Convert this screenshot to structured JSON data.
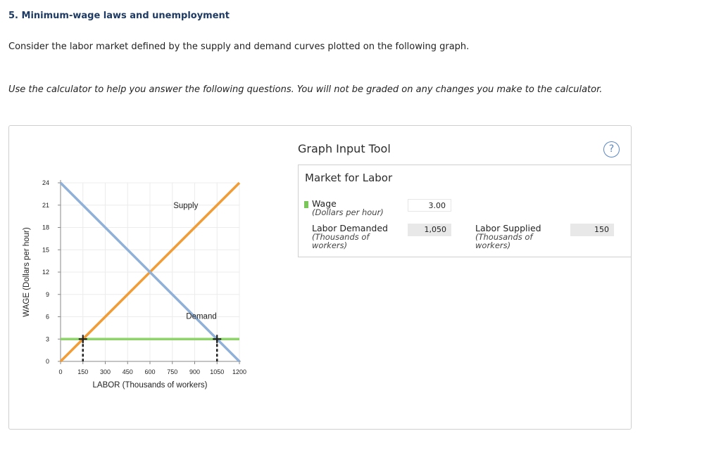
{
  "question": {
    "title": "5. Minimum-wage laws and unemployment",
    "intro": "Consider the labor market defined by the supply and demand curves plotted on the following graph.",
    "instructions": "Use the calculator to help you answer the following questions. You will not be graded on any changes you make to the calculator."
  },
  "chart_data": {
    "type": "line",
    "xlabel": "LABOR (Thousands of workers)",
    "ylabel": "WAGE (Dollars per hour)",
    "xlim": [
      0,
      1200
    ],
    "ylim": [
      0,
      24
    ],
    "xticks": [
      0,
      150,
      300,
      450,
      600,
      750,
      900,
      1050,
      1200
    ],
    "yticks": [
      0,
      3,
      6,
      9,
      12,
      15,
      18,
      21,
      24
    ],
    "series": [
      {
        "name": "Supply",
        "color": "#f39c35",
        "x": [
          0,
          1200
        ],
        "y": [
          0,
          24
        ]
      },
      {
        "name": "Demand",
        "color": "#8fb0d8",
        "x": [
          0,
          1200
        ],
        "y": [
          24,
          0
        ]
      }
    ],
    "minimum_wage": {
      "y": 3,
      "color": "#8fd46a"
    },
    "markers": [
      {
        "x": 150,
        "y": 3
      },
      {
        "x": 1050,
        "y": 3
      }
    ],
    "grid": true
  },
  "tool": {
    "title": "Graph Input Tool",
    "help": "?",
    "subtitle": "Market for Labor",
    "wage_label": "Wage",
    "wage_unit": "(Dollars per hour)",
    "wage_value": "3.00",
    "demanded_label": "Labor Demanded",
    "demanded_unit": "(Thousands of workers)",
    "demanded_value": "1,050",
    "supplied_label": "Labor Supplied",
    "supplied_unit": "(Thousands of workers)",
    "supplied_value": "150"
  }
}
